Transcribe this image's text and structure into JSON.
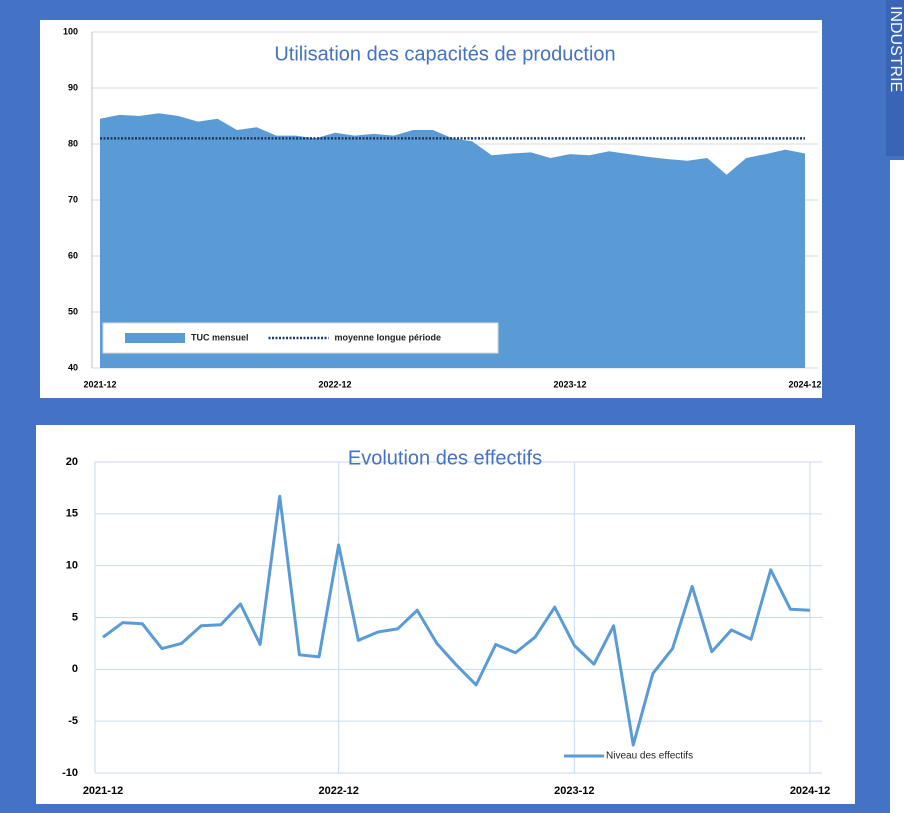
{
  "side_tab": "INDUSTRIE",
  "chart_data": [
    {
      "type": "area",
      "title": "Utilisation des capacités de production",
      "categories": [
        "2021-12",
        null,
        null,
        null,
        null,
        null,
        null,
        null,
        null,
        null,
        null,
        null,
        "2022-12",
        null,
        null,
        null,
        null,
        null,
        null,
        null,
        null,
        null,
        null,
        null,
        "2023-12",
        null,
        null,
        null,
        null,
        null,
        null,
        null,
        null,
        null,
        null,
        null,
        "2024-12"
      ],
      "series": [
        {
          "name": "TUC mensuel",
          "color": "#5b9bd5",
          "type": "area",
          "values": [
            84.5,
            85.2,
            85,
            85.5,
            85,
            84,
            84.5,
            82.5,
            83,
            81.5,
            81.5,
            81,
            82,
            81.5,
            81.8,
            81.5,
            82.5,
            82.5,
            81,
            80.5,
            78,
            78.3,
            78.5,
            77.5,
            78.2,
            78,
            78.7,
            78.2,
            77.7,
            77.3,
            77,
            77.5,
            74.5,
            77.5,
            78.2,
            79,
            78.3
          ]
        },
        {
          "name": "moyenne longue période",
          "color": "#1f3864",
          "type": "line",
          "dash": "dotted",
          "values": [
            81,
            81,
            81,
            81,
            81,
            81,
            81,
            81,
            81,
            81,
            81,
            81,
            81,
            81,
            81,
            81,
            81,
            81,
            81,
            81,
            81,
            81,
            81,
            81,
            81,
            81,
            81,
            81,
            81,
            81,
            81,
            81,
            81,
            81,
            81,
            81,
            81
          ]
        }
      ],
      "ylim": [
        40,
        100
      ],
      "yticks": [
        40,
        50,
        60,
        70,
        80,
        90,
        100
      ],
      "grid": true,
      "legend": "bottom-left"
    },
    {
      "type": "line",
      "title": "Evolution des effectifs",
      "categories": [
        "2021-12",
        null,
        null,
        null,
        null,
        null,
        null,
        null,
        null,
        null,
        null,
        null,
        "2022-12",
        null,
        null,
        null,
        null,
        null,
        null,
        null,
        null,
        null,
        null,
        null,
        "2023-12",
        null,
        null,
        null,
        null,
        null,
        null,
        null,
        null,
        null,
        null,
        null,
        "2024-12"
      ],
      "series": [
        {
          "name": "Niveau des effectifs",
          "color": "#5b9bd5",
          "type": "line",
          "values": [
            3.1,
            4.5,
            4.4,
            2.0,
            2.5,
            4.2,
            4.3,
            6.3,
            2.4,
            16.7,
            1.4,
            1.2,
            12.0,
            2.8,
            3.6,
            3.9,
            5.7,
            2.5,
            0.4,
            -1.5,
            2.4,
            1.6,
            3.1,
            6.0,
            2.3,
            0.5,
            4.2,
            -7.3,
            -0.4,
            2.0,
            8.0,
            1.7,
            3.8,
            2.9,
            9.6,
            5.8,
            5.7
          ]
        }
      ],
      "ylim": [
        -10,
        20
      ],
      "yticks": [
        -10,
        -5,
        0,
        5,
        10,
        15,
        20
      ],
      "grid": true,
      "legend": "bottom-right"
    }
  ]
}
